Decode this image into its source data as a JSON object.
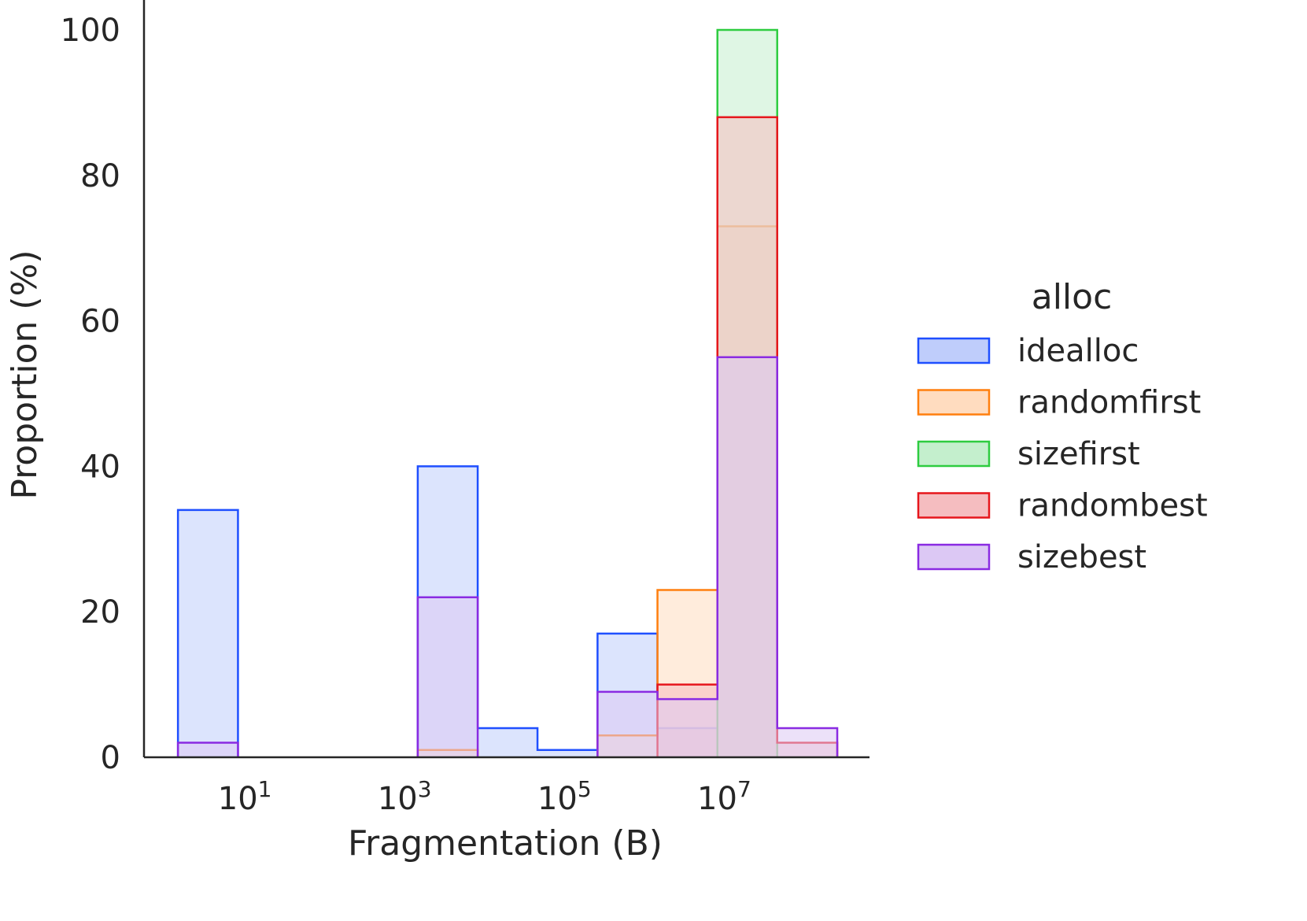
{
  "chart_data": {
    "type": "histogram",
    "xlabel": "Fragmentation (B)",
    "ylabel": "Proportion (%)",
    "xscale": "log",
    "x_tick_labels": [
      {
        "value": 10,
        "base": "10",
        "exp": "1"
      },
      {
        "value": 1000,
        "base": "10",
        "exp": "3"
      },
      {
        "value": 100000,
        "base": "10",
        "exp": "5"
      },
      {
        "value": 10000000,
        "base": "10",
        "exp": "7"
      }
    ],
    "y_ticks": [
      0,
      20,
      40,
      60,
      80,
      100
    ],
    "y_tick_labels": [
      "0",
      "20",
      "40",
      "60",
      "80",
      "100"
    ],
    "xlim": [
      0.5,
      600000000
    ],
    "ylim": [
      0,
      100
    ],
    "grid": false,
    "bin_edges": [
      1.33,
      7.5,
      42,
      237,
      1333,
      7500,
      42000,
      237000,
      1333000,
      7500000,
      42000000,
      237000000
    ],
    "legend": {
      "title": "alloc",
      "placement": "right"
    },
    "series": [
      {
        "name": "idealloc",
        "color": "#1f4fff",
        "fill": "#bfcdfb",
        "values": [
          34,
          0,
          0,
          0,
          40,
          4,
          1,
          17,
          4,
          0,
          0
        ]
      },
      {
        "name": "randomfirst",
        "color": "#ff7f0e",
        "fill": "#ffdcbf",
        "values": [
          0,
          0,
          0,
          0,
          1,
          0,
          0,
          3,
          23,
          73,
          0
        ]
      },
      {
        "name": "sizefirst",
        "color": "#2ecc40",
        "fill": "#c4efcd",
        "values": [
          0,
          0,
          0,
          0,
          0,
          0,
          0,
          0,
          0,
          100,
          0
        ]
      },
      {
        "name": "randombest",
        "color": "#e6161c",
        "fill": "#f5bdc0",
        "values": [
          0,
          0,
          0,
          0,
          0,
          0,
          0,
          0,
          10,
          88,
          2
        ]
      },
      {
        "name": "sizebest",
        "color": "#8a2be2",
        "fill": "#dcc8f4",
        "values": [
          2,
          0,
          0,
          0,
          22,
          0,
          0,
          9,
          8,
          55,
          4
        ]
      }
    ]
  }
}
